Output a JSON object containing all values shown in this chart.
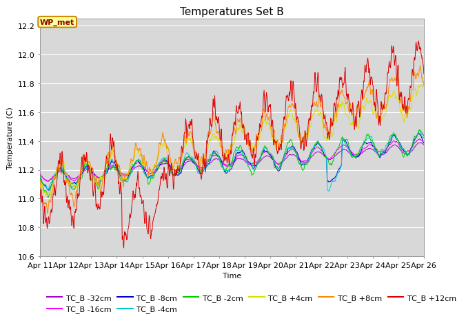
{
  "title": "Temperatures Set B",
  "xlabel": "Time",
  "ylabel": "Temperature (C)",
  "ylim": [
    10.6,
    12.25
  ],
  "n_days": 15,
  "x_tick_labels": [
    "Apr 11",
    "Apr 12",
    "Apr 13",
    "Apr 14",
    "Apr 15",
    "Apr 16",
    "Apr 17",
    "Apr 18",
    "Apr 19",
    "Apr 20",
    "Apr 21",
    "Apr 22",
    "Apr 23",
    "Apr 24",
    "Apr 25",
    "Apr 26"
  ],
  "series_labels": [
    "TC_B -32cm",
    "TC_B -16cm",
    "TC_B -8cm",
    "TC_B -4cm",
    "TC_B -2cm",
    "TC_B +4cm",
    "TC_B +8cm",
    "TC_B +12cm"
  ],
  "series_colors": [
    "#aa00cc",
    "#ff00ff",
    "#0000dd",
    "#00cccc",
    "#00cc00",
    "#dddd00",
    "#ff8800",
    "#dd0000"
  ],
  "wp_met_label": "WP_met",
  "wp_met_bg": "#ffff99",
  "wp_met_border": "#cc8800",
  "background_color": "#d8d8d8",
  "grid_color": "#ffffff",
  "title_fontsize": 11,
  "axis_fontsize": 8,
  "tick_fontsize": 8,
  "legend_fontsize": 8,
  "linewidth": 0.7
}
